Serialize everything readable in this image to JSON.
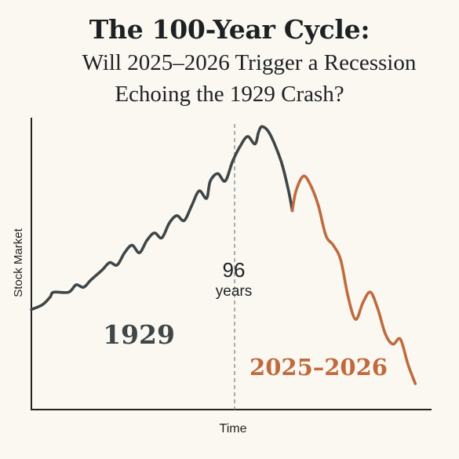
{
  "title": "The 100-Year Cycle:",
  "subtitle_line1": "Will 2025–2026 Trigger a Recession",
  "subtitle_line2": "Echoing the 1929 Crash?",
  "colors": {
    "background": "#fbf8f1",
    "series_1929": "#3e4648",
    "series_2025": "#c06a3f",
    "axis": "#222222",
    "divider": "#8c8c8c"
  },
  "chart_data": {
    "type": "line",
    "xlabel": "Time",
    "ylabel": "Stock Market",
    "grid": false,
    "legend": "none",
    "divider_label": {
      "number": "96",
      "unit": "years"
    },
    "series": [
      {
        "name": "1929",
        "x": [
          0,
          3,
          5,
          6,
          10,
          12,
          14,
          16,
          19,
          21,
          23,
          25,
          27,
          29,
          31,
          33,
          35,
          37,
          39,
          41,
          43,
          45,
          47,
          48,
          50,
          52,
          54,
          56,
          58,
          60,
          61,
          62,
          64,
          67,
          69,
          70
        ],
        "y": [
          10,
          12,
          15,
          17,
          17,
          20,
          19,
          22,
          26,
          29,
          28,
          33,
          36,
          33,
          38,
          41,
          39,
          45,
          48,
          46,
          52,
          58,
          55,
          62,
          65,
          62,
          70,
          76,
          80,
          77,
          82,
          84,
          81,
          70,
          58,
          50
        ]
      },
      {
        "name": "2025–2026",
        "x": [
          70,
          71,
          73,
          75,
          77,
          79,
          81,
          83,
          85,
          87,
          89,
          91,
          93,
          95,
          97,
          99,
          101,
          103
        ],
        "y": [
          50,
          58,
          64,
          60,
          52,
          40,
          36,
          30,
          15,
          6,
          13,
          17,
          10,
          0,
          -4,
          -2,
          -12,
          -20
        ]
      }
    ],
    "annotations": [
      "1929",
      "2025–2026"
    ]
  }
}
